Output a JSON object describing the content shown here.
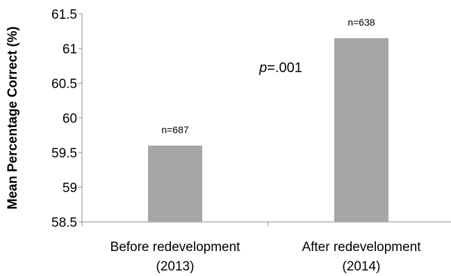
{
  "chart_data": {
    "type": "bar",
    "ylabel": "Mean Percentage Correct (%)",
    "ylim": [
      58.5,
      61.5
    ],
    "yticks": [
      "58.5",
      "59",
      "59.5",
      "60",
      "60.5",
      "61",
      "61.5"
    ],
    "categories": [
      [
        "Before redevelopment",
        "(2013)"
      ],
      [
        "After redevelopment",
        "(2014)"
      ]
    ],
    "values": [
      59.6,
      61.15
    ],
    "data_labels": [
      "n=687",
      "n=638"
    ],
    "annotation": {
      "italic": "p",
      "rest": "=.001"
    },
    "bar_color": "#a6a6a6",
    "axis_color": "#8c8c8c",
    "grid": false,
    "legend": "none"
  }
}
